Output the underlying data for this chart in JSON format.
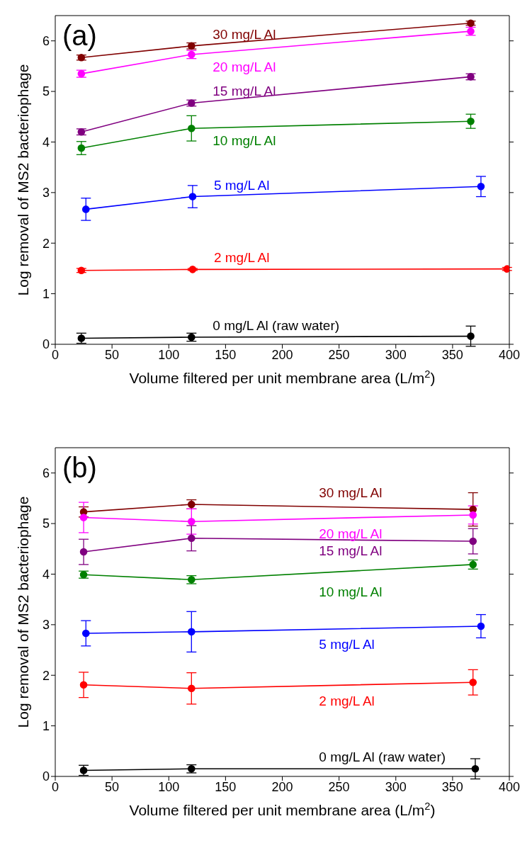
{
  "chart_data": [
    {
      "type": "line",
      "xlabel": "Volume filtered per unit membrane area (L/m$^{2}$)",
      "ylabel": "Log removal of MS2 bacteriophage",
      "annotations": [
        "(a)"
      ],
      "xlim": [
        0,
        400
      ],
      "xticks": [
        0,
        50,
        100,
        150,
        200,
        250,
        300,
        350,
        400
      ],
      "ylim": [
        0,
        6.5
      ],
      "yticks": [
        0,
        1,
        2,
        3,
        4,
        5,
        6
      ],
      "grid": false,
      "legend": false,
      "marker": "circle",
      "line_style": "solid",
      "series": [
        {
          "name": "30 mg/L Al",
          "color": "#800000",
          "x": [
            23,
            120,
            366
          ],
          "values": [
            5.67,
            5.9,
            6.35
          ],
          "errors": [
            0.05,
            0.06,
            0.04
          ]
        },
        {
          "name": "20 mg/L Al",
          "color": "#ff00ff",
          "x": [
            23,
            120,
            366
          ],
          "values": [
            5.35,
            5.73,
            6.19
          ],
          "errors": [
            0.07,
            0.08,
            0.08
          ]
        },
        {
          "name": "15 mg/L Al",
          "color": "#800080",
          "x": [
            23,
            120,
            366
          ],
          "values": [
            4.2,
            4.77,
            5.29
          ],
          "errors": [
            0.06,
            0.06,
            0.06
          ]
        },
        {
          "name": "10 mg/L Al",
          "color": "#008000",
          "x": [
            23,
            120,
            366
          ],
          "values": [
            3.88,
            4.27,
            4.41
          ],
          "errors": [
            0.13,
            0.25,
            0.14
          ]
        },
        {
          "name": "5 mg/L Al",
          "color": "#0000ff",
          "x": [
            27,
            121,
            375
          ],
          "values": [
            2.67,
            2.92,
            3.12
          ],
          "errors": [
            0.22,
            0.22,
            0.2
          ]
        },
        {
          "name": "2 mg/L Al",
          "color": "#ff0000",
          "x": [
            23,
            121,
            398
          ],
          "values": [
            1.46,
            1.48,
            1.49
          ],
          "errors": [
            0.04,
            0.02,
            0.03
          ]
        },
        {
          "name": "0 mg/L Al (raw water)",
          "color": "#000000",
          "x": [
            23,
            120,
            366
          ],
          "values": [
            0.12,
            0.14,
            0.16
          ],
          "errors": [
            0.1,
            0.08,
            0.2
          ]
        }
      ]
    },
    {
      "type": "line",
      "xlabel": "Volume filtered per unit membrane area (L/m$^{2}$)",
      "ylabel": "Log removal of MS2 bacteriophage",
      "annotations": [
        "(b)"
      ],
      "xlim": [
        0,
        400
      ],
      "xticks": [
        0,
        50,
        100,
        150,
        200,
        250,
        300,
        350,
        400
      ],
      "ylim": [
        0,
        6.5
      ],
      "yticks": [
        0,
        1,
        2,
        3,
        4,
        5,
        6
      ],
      "grid": false,
      "legend": false,
      "marker": "circle",
      "line_style": "solid",
      "series": [
        {
          "name": "30 mg/L Al",
          "color": "#800000",
          "x": [
            25,
            120,
            368
          ],
          "values": [
            5.23,
            5.38,
            5.28
          ],
          "errors": [
            0.1,
            0.09,
            0.33
          ]
        },
        {
          "name": "20 mg/L Al",
          "color": "#ff00ff",
          "x": [
            25,
            120,
            368
          ],
          "values": [
            5.12,
            5.04,
            5.17
          ],
          "errors": [
            0.3,
            0.25,
            0.18
          ]
        },
        {
          "name": "15 mg/L Al",
          "color": "#800080",
          "x": [
            25,
            120,
            368
          ],
          "values": [
            4.44,
            4.71,
            4.65
          ],
          "errors": [
            0.25,
            0.25,
            0.25
          ]
        },
        {
          "name": "10 mg/L Al",
          "color": "#008000",
          "x": [
            25,
            120,
            368
          ],
          "values": [
            3.99,
            3.89,
            4.19
          ],
          "errors": [
            0.07,
            0.08,
            0.09
          ]
        },
        {
          "name": "5 mg/L Al",
          "color": "#0000ff",
          "x": [
            27,
            120,
            375
          ],
          "values": [
            2.83,
            2.86,
            2.97
          ],
          "errors": [
            0.25,
            0.4,
            0.23
          ]
        },
        {
          "name": "2 mg/L Al",
          "color": "#ff0000",
          "x": [
            25,
            120,
            368
          ],
          "values": [
            1.81,
            1.74,
            1.86
          ],
          "errors": [
            0.25,
            0.31,
            0.25
          ]
        },
        {
          "name": "0 mg/L Al (raw water)",
          "color": "#000000",
          "x": [
            25,
            120,
            370
          ],
          "values": [
            0.12,
            0.15,
            0.15
          ],
          "errors": [
            0.1,
            0.08,
            0.2
          ]
        }
      ]
    }
  ]
}
